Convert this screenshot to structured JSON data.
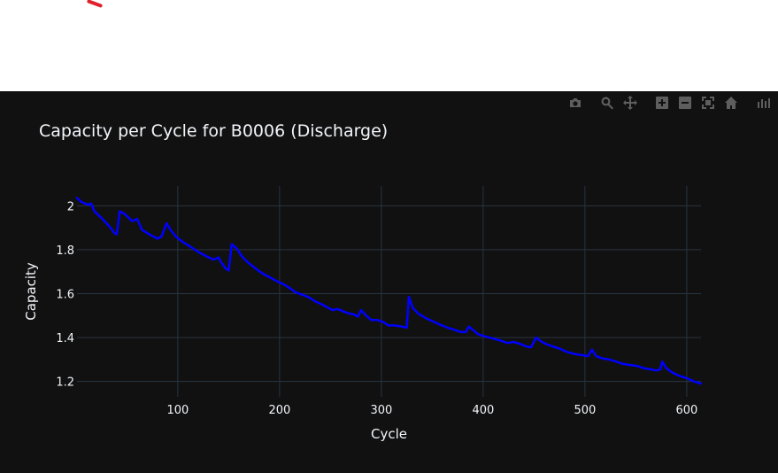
{
  "modebar": {
    "icons": [
      "camera-icon",
      "zoom-icon",
      "pan-icon",
      "zoom-in-icon",
      "zoom-out-icon",
      "autoscale-icon",
      "home-icon",
      "plotly-logo-icon"
    ],
    "icon_color": "#5e5e5e"
  },
  "colors": {
    "background": "#111111",
    "grid": "#283442",
    "text": "#f2f5fa",
    "line": "#0000ff"
  },
  "chart_data": {
    "type": "line",
    "title": "Capacity per Cycle for B0006 (Discharge)",
    "xlabel": "Cycle",
    "ylabel": "Capacity",
    "xlim": [
      1,
      614
    ],
    "ylim": [
      1.13,
      2.09
    ],
    "xticks": [
      100,
      200,
      300,
      400,
      500,
      600
    ],
    "yticks": [
      1.2,
      1.4,
      1.6,
      1.8,
      2
    ],
    "grid": true,
    "series": [
      {
        "color": "#0000ff",
        "points": [
          [
            1,
            2.035
          ],
          [
            6,
            2.015
          ],
          [
            12,
            2.005
          ],
          [
            15,
            2.01
          ],
          [
            18,
            1.975
          ],
          [
            25,
            1.945
          ],
          [
            33,
            1.905
          ],
          [
            38,
            1.875
          ],
          [
            40,
            1.87
          ],
          [
            43,
            1.975
          ],
          [
            47,
            1.965
          ],
          [
            52,
            1.945
          ],
          [
            55,
            1.93
          ],
          [
            60,
            1.94
          ],
          [
            65,
            1.89
          ],
          [
            72,
            1.87
          ],
          [
            80,
            1.85
          ],
          [
            84,
            1.86
          ],
          [
            89,
            1.92
          ],
          [
            93,
            1.89
          ],
          [
            98,
            1.86
          ],
          [
            105,
            1.835
          ],
          [
            112,
            1.815
          ],
          [
            120,
            1.79
          ],
          [
            128,
            1.77
          ],
          [
            135,
            1.755
          ],
          [
            140,
            1.765
          ],
          [
            143,
            1.74
          ],
          [
            147,
            1.715
          ],
          [
            150,
            1.705
          ],
          [
            153,
            1.825
          ],
          [
            158,
            1.805
          ],
          [
            163,
            1.77
          ],
          [
            168,
            1.745
          ],
          [
            175,
            1.72
          ],
          [
            182,
            1.695
          ],
          [
            190,
            1.675
          ],
          [
            198,
            1.655
          ],
          [
            205,
            1.64
          ],
          [
            210,
            1.625
          ],
          [
            216,
            1.605
          ],
          [
            222,
            1.595
          ],
          [
            228,
            1.585
          ],
          [
            235,
            1.565
          ],
          [
            242,
            1.55
          ],
          [
            248,
            1.535
          ],
          [
            252,
            1.525
          ],
          [
            257,
            1.53
          ],
          [
            262,
            1.52
          ],
          [
            268,
            1.51
          ],
          [
            273,
            1.505
          ],
          [
            277,
            1.495
          ],
          [
            280,
            1.525
          ],
          [
            285,
            1.5
          ],
          [
            290,
            1.48
          ],
          [
            296,
            1.48
          ],
          [
            302,
            1.47
          ],
          [
            307,
            1.455
          ],
          [
            313,
            1.455
          ],
          [
            320,
            1.45
          ],
          [
            325,
            1.445
          ],
          [
            327,
            1.585
          ],
          [
            331,
            1.535
          ],
          [
            336,
            1.51
          ],
          [
            343,
            1.49
          ],
          [
            350,
            1.475
          ],
          [
            357,
            1.46
          ],
          [
            365,
            1.445
          ],
          [
            372,
            1.435
          ],
          [
            378,
            1.425
          ],
          [
            383,
            1.425
          ],
          [
            386,
            1.45
          ],
          [
            390,
            1.435
          ],
          [
            395,
            1.415
          ],
          [
            402,
            1.405
          ],
          [
            410,
            1.395
          ],
          [
            418,
            1.385
          ],
          [
            424,
            1.375
          ],
          [
            430,
            1.38
          ],
          [
            437,
            1.37
          ],
          [
            442,
            1.36
          ],
          [
            447,
            1.355
          ],
          [
            452,
            1.4
          ],
          [
            456,
            1.385
          ],
          [
            462,
            1.37
          ],
          [
            468,
            1.36
          ],
          [
            475,
            1.35
          ],
          [
            482,
            1.335
          ],
          [
            490,
            1.325
          ],
          [
            497,
            1.32
          ],
          [
            503,
            1.315
          ],
          [
            507,
            1.345
          ],
          [
            511,
            1.315
          ],
          [
            517,
            1.305
          ],
          [
            524,
            1.3
          ],
          [
            531,
            1.29
          ],
          [
            537,
            1.28
          ],
          [
            545,
            1.275
          ],
          [
            552,
            1.27
          ],
          [
            558,
            1.26
          ],
          [
            565,
            1.255
          ],
          [
            570,
            1.25
          ],
          [
            574,
            1.255
          ],
          [
            576,
            1.29
          ],
          [
            580,
            1.26
          ],
          [
            586,
            1.24
          ],
          [
            593,
            1.225
          ],
          [
            600,
            1.215
          ],
          [
            607,
            1.2
          ],
          [
            614,
            1.19
          ]
        ]
      }
    ]
  }
}
